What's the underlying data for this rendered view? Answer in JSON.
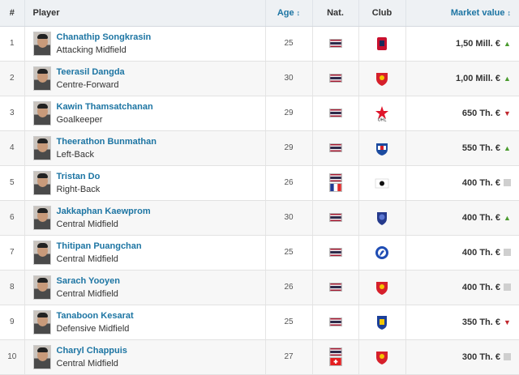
{
  "table": {
    "headers": {
      "num": "#",
      "player": "Player",
      "age": "Age",
      "nat": "Nat.",
      "club": "Club",
      "market_value": "Market value"
    },
    "sort_icons": {
      "age": "sort-icon",
      "market_value": "sort-icon"
    },
    "rows": [
      {
        "num": "1",
        "name": "Chanathip Songkrasin",
        "position": "Attacking Midfield",
        "age": "25",
        "nationalities": [
          "thailand"
        ],
        "club": "red-crest-icon",
        "value": "1,50 Mill. €",
        "trend": "up"
      },
      {
        "num": "2",
        "name": "Teerasil Dangda",
        "position": "Centre-Forward",
        "age": "30",
        "nationalities": [
          "thailand"
        ],
        "club": "red-shield-crest-icon",
        "value": "1,00 Mill. €",
        "trend": "up"
      },
      {
        "num": "3",
        "name": "Kawin Thamsatchanan",
        "position": "Goalkeeper",
        "age": "29",
        "nationalities": [
          "thailand"
        ],
        "club": "ohl-crest-icon",
        "value": "650 Th. €",
        "trend": "down"
      },
      {
        "num": "4",
        "name": "Theerathon Bunmathan",
        "position": "Left-Back",
        "age": "29",
        "nationalities": [
          "thailand"
        ],
        "club": "blue-white-crest-icon",
        "value": "550 Th. €",
        "trend": "up"
      },
      {
        "num": "5",
        "name": "Tristan Do",
        "position": "Right-Back",
        "age": "26",
        "nationalities": [
          "thailand",
          "france"
        ],
        "club": "japan-flag-icon",
        "value": "400 Th. €",
        "trend": "flat"
      },
      {
        "num": "6",
        "name": "Jakkaphan Kaewprom",
        "position": "Central Midfield",
        "age": "30",
        "nationalities": [
          "thailand"
        ],
        "club": "blue-crest-icon",
        "value": "400 Th. €",
        "trend": "up"
      },
      {
        "num": "7",
        "name": "Thitipan Puangchan",
        "position": "Central Midfield",
        "age": "25",
        "nationalities": [
          "thailand"
        ],
        "club": "round-blue-crest-icon",
        "value": "400 Th. €",
        "trend": "flat"
      },
      {
        "num": "8",
        "name": "Sarach Yooyen",
        "position": "Central Midfield",
        "age": "26",
        "nationalities": [
          "thailand"
        ],
        "club": "red-shield-crest-icon",
        "value": "400 Th. €",
        "trend": "flat"
      },
      {
        "num": "9",
        "name": "Tanaboon Kesarat",
        "position": "Defensive Midfield",
        "age": "25",
        "nationalities": [
          "thailand"
        ],
        "club": "blue-shield-crest-icon",
        "value": "350 Th. €",
        "trend": "down"
      },
      {
        "num": "10",
        "name": "Charyl Chappuis",
        "position": "Central Midfield",
        "age": "27",
        "nationalities": [
          "thailand",
          "switzerland"
        ],
        "club": "red-shield-crest-icon",
        "value": "300 Th. €",
        "trend": "flat"
      }
    ]
  },
  "colors": {
    "link": "#1d75a3",
    "header_bg": "#eef1f4",
    "trend_up": "#4a9b2f",
    "trend_down": "#c0262d",
    "trend_flat": "#cfcfcf"
  }
}
